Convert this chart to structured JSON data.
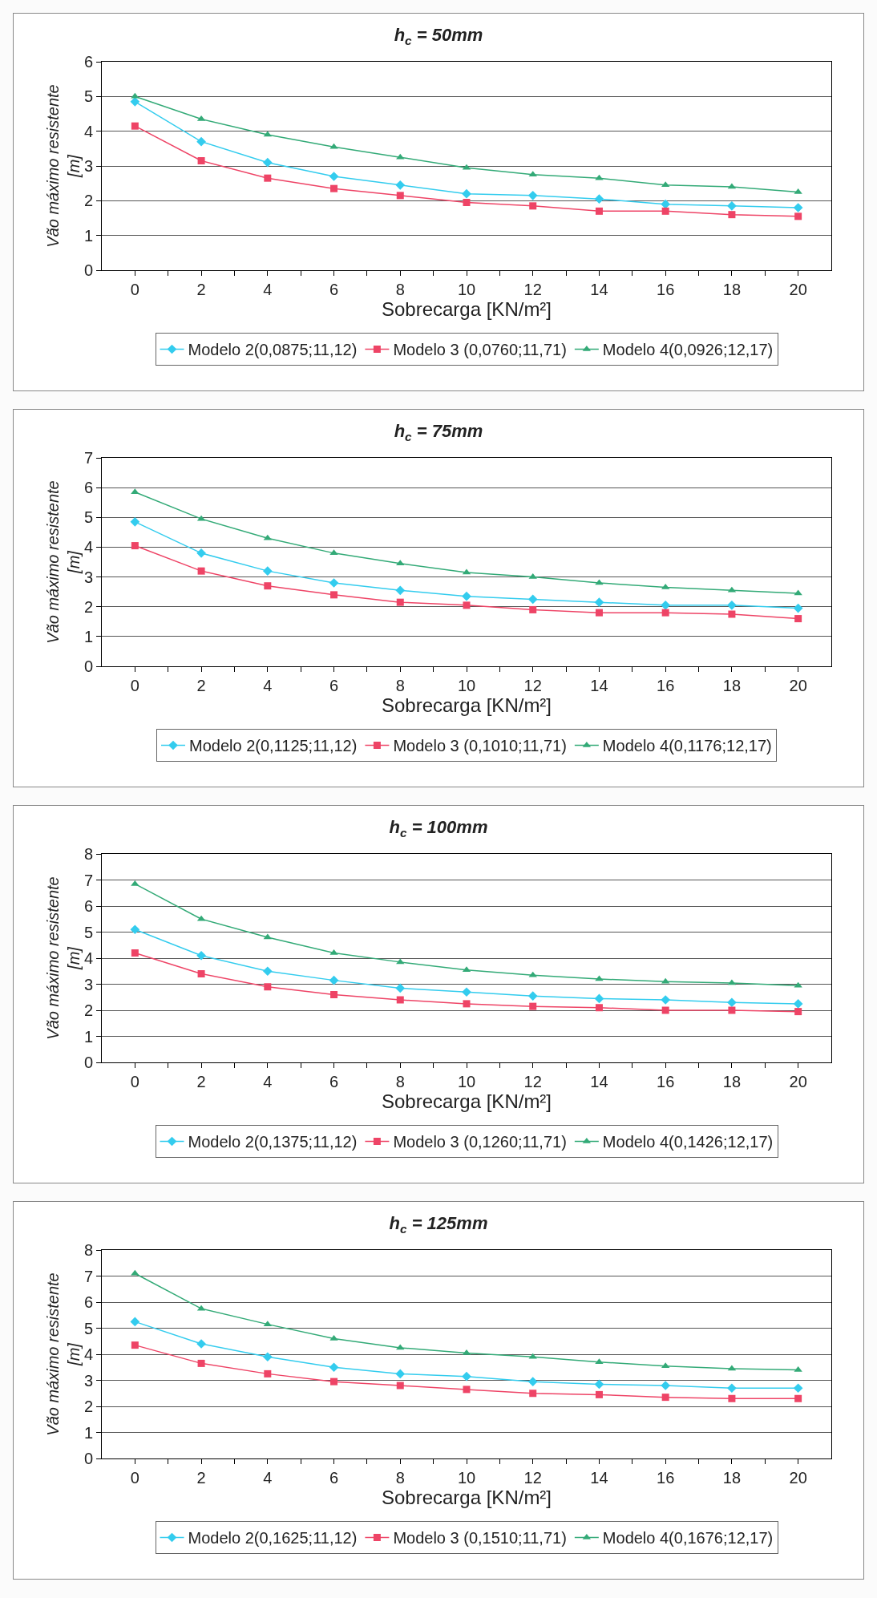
{
  "chart_data": [
    {
      "type": "line",
      "title": "h$_{c}$ = 50mm",
      "xlabel": "Sobrecarga [KN/m²]",
      "ylabel": "Vão máximo resistente\n[m]",
      "x": [
        0,
        2,
        4,
        6,
        8,
        10,
        12,
        14,
        16,
        18,
        20
      ],
      "xlim": [
        -1,
        21
      ],
      "xticks": [
        0,
        {
          "value": 1,
          "label": null
        },
        2,
        {
          "value": 3,
          "label": null
        },
        4,
        {
          "value": 5,
          "label": null
        },
        6,
        {
          "value": 7,
          "label": null
        },
        8,
        {
          "value": 9,
          "label": null
        },
        10,
        {
          "value": 11,
          "label": null
        },
        12,
        {
          "value": 13,
          "label": null
        },
        14,
        {
          "value": 15,
          "label": null
        },
        16,
        {
          "value": 17,
          "label": null
        },
        18,
        {
          "value": 19,
          "label": null
        },
        20
      ],
      "ylim": [
        0,
        6
      ],
      "yticks": [
        0,
        1,
        2,
        3,
        4,
        5,
        6
      ],
      "grid": "y",
      "legend": "bottom",
      "line_style": "solid",
      "series": [
        {
          "name": "Modelo 2(0,0875;11,12)",
          "color": "#33ccee",
          "marker": "diamond",
          "values": [
            4.85,
            3.7,
            3.1,
            2.7,
            2.45,
            2.2,
            2.15,
            2.05,
            1.9,
            1.85,
            1.8
          ]
        },
        {
          "name": "Modelo 3 (0,0760;11,71)",
          "color": "#ee4466",
          "marker": "square",
          "values": [
            4.15,
            3.15,
            2.65,
            2.35,
            2.15,
            1.95,
            1.85,
            1.7,
            1.7,
            1.6,
            1.55
          ]
        },
        {
          "name": "Modelo 4(0,0926;12,17)",
          "color": "#33aa77",
          "marker": "triangle",
          "values": [
            5.0,
            4.35,
            3.9,
            3.55,
            3.25,
            2.95,
            2.75,
            2.65,
            2.45,
            2.4,
            2.25
          ]
        }
      ]
    },
    {
      "type": "line",
      "title": "h$_{c}$ = 75mm",
      "xlabel": "Sobrecarga [KN/m²]",
      "ylabel": "Vão máximo resistente\n[m]",
      "x": [
        0,
        2,
        4,
        6,
        8,
        10,
        12,
        14,
        16,
        18,
        20
      ],
      "xlim": [
        -1,
        21
      ],
      "xticks": [
        0,
        {
          "value": 1,
          "label": null
        },
        2,
        {
          "value": 3,
          "label": null
        },
        4,
        {
          "value": 5,
          "label": null
        },
        6,
        {
          "value": 7,
          "label": null
        },
        8,
        {
          "value": 9,
          "label": null
        },
        10,
        {
          "value": 11,
          "label": null
        },
        12,
        {
          "value": 13,
          "label": null
        },
        14,
        {
          "value": 15,
          "label": null
        },
        16,
        {
          "value": 17,
          "label": null
        },
        18,
        {
          "value": 19,
          "label": null
        },
        20
      ],
      "ylim": [
        0,
        7
      ],
      "yticks": [
        0,
        1,
        2,
        3,
        4,
        5,
        6,
        7
      ],
      "grid": "y",
      "legend": "bottom",
      "line_style": "solid",
      "series": [
        {
          "name": "Modelo 2(0,1125;11,12)",
          "color": "#33ccee",
          "marker": "diamond",
          "values": [
            4.85,
            3.8,
            3.2,
            2.8,
            2.55,
            2.35,
            2.25,
            2.15,
            2.05,
            2.05,
            1.95
          ]
        },
        {
          "name": "Modelo 3 (0,1010;11,71)",
          "color": "#ee4466",
          "marker": "square",
          "values": [
            4.05,
            3.2,
            2.7,
            2.4,
            2.15,
            2.05,
            1.9,
            1.8,
            1.8,
            1.75,
            1.6
          ]
        },
        {
          "name": "Modelo 4(0,1176;12,17)",
          "color": "#33aa77",
          "marker": "triangle",
          "values": [
            5.85,
            4.95,
            4.3,
            3.8,
            3.45,
            3.15,
            3.0,
            2.8,
            2.65,
            2.55,
            2.45
          ]
        }
      ]
    },
    {
      "type": "line",
      "title": "h$_{c}$ = 100mm",
      "xlabel": "Sobrecarga [KN/m²]",
      "ylabel": "Vão máximo resistente\n[m]",
      "x": [
        0,
        2,
        4,
        6,
        8,
        10,
        12,
        14,
        16,
        18,
        20
      ],
      "xlim": [
        -1,
        21
      ],
      "xticks": [
        0,
        {
          "value": 1,
          "label": null
        },
        2,
        {
          "value": 3,
          "label": null
        },
        4,
        {
          "value": 5,
          "label": null
        },
        6,
        {
          "value": 7,
          "label": null
        },
        8,
        {
          "value": 9,
          "label": null
        },
        10,
        {
          "value": 11,
          "label": null
        },
        12,
        {
          "value": 13,
          "label": null
        },
        14,
        {
          "value": 15,
          "label": null
        },
        16,
        {
          "value": 17,
          "label": null
        },
        18,
        {
          "value": 19,
          "label": null
        },
        20
      ],
      "ylim": [
        0,
        8
      ],
      "yticks": [
        0,
        1,
        2,
        3,
        4,
        5,
        6,
        7,
        8
      ],
      "grid": "y",
      "legend": "bottom",
      "line_style": "solid",
      "series": [
        {
          "name": "Modelo 2(0,1375;11,12)",
          "color": "#33ccee",
          "marker": "diamond",
          "values": [
            5.1,
            4.1,
            3.5,
            3.15,
            2.85,
            2.7,
            2.55,
            2.45,
            2.4,
            2.3,
            2.25
          ]
        },
        {
          "name": "Modelo 3 (0,1260;11,71)",
          "color": "#ee4466",
          "marker": "square",
          "values": [
            4.2,
            3.4,
            2.9,
            2.6,
            2.4,
            2.25,
            2.15,
            2.1,
            2.0,
            2.0,
            1.95
          ]
        },
        {
          "name": "Modelo 4(0,1426;12,17)",
          "color": "#33aa77",
          "marker": "triangle",
          "values": [
            6.85,
            5.5,
            4.8,
            4.2,
            3.85,
            3.55,
            3.35,
            3.2,
            3.1,
            3.05,
            2.95
          ]
        }
      ]
    },
    {
      "type": "line",
      "title": "h$_{c}$ = 125mm",
      "xlabel": "Sobrecarga [KN/m²]",
      "ylabel": "Vão máximo resistente\n[m]",
      "x": [
        0,
        2,
        4,
        6,
        8,
        10,
        12,
        14,
        16,
        18,
        20
      ],
      "xlim": [
        -1,
        21
      ],
      "xticks": [
        0,
        {
          "value": 1,
          "label": null
        },
        2,
        {
          "value": 3,
          "label": null
        },
        4,
        {
          "value": 5,
          "label": null
        },
        6,
        {
          "value": 7,
          "label": null
        },
        8,
        {
          "value": 9,
          "label": null
        },
        10,
        {
          "value": 11,
          "label": null
        },
        12,
        {
          "value": 13,
          "label": null
        },
        14,
        {
          "value": 15,
          "label": null
        },
        16,
        {
          "value": 17,
          "label": null
        },
        18,
        {
          "value": 19,
          "label": null
        },
        20
      ],
      "ylim": [
        0,
        8
      ],
      "yticks": [
        0,
        1,
        2,
        3,
        4,
        5,
        6,
        7,
        8
      ],
      "grid": "y",
      "legend": "bottom",
      "line_style": "solid",
      "series": [
        {
          "name": "Modelo 2(0,1625;11,12)",
          "color": "#33ccee",
          "marker": "diamond",
          "values": [
            5.25,
            4.4,
            3.9,
            3.5,
            3.25,
            3.15,
            2.95,
            2.85,
            2.8,
            2.7,
            2.7
          ]
        },
        {
          "name": "Modelo 3 (0,1510;11,71)",
          "color": "#ee4466",
          "marker": "square",
          "values": [
            4.35,
            3.65,
            3.25,
            2.95,
            2.8,
            2.65,
            2.5,
            2.45,
            2.35,
            2.3,
            2.3
          ]
        },
        {
          "name": "Modelo 4(0,1676;12,17)",
          "color": "#33aa77",
          "marker": "triangle",
          "values": [
            7.1,
            5.75,
            5.15,
            4.6,
            4.25,
            4.05,
            3.9,
            3.7,
            3.55,
            3.45,
            3.4
          ]
        }
      ]
    }
  ]
}
